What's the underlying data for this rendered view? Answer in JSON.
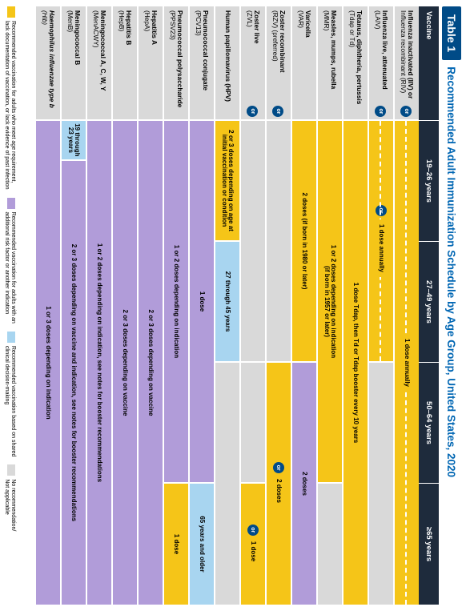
{
  "meta": {
    "table_label": "Table 1",
    "title": "Recommended Adult Immunization Schedule by Age Group, United States, 2020"
  },
  "palette": {
    "yellow": "#f5c518",
    "purple": "#b19cd9",
    "blue": "#a8d5f0",
    "gray": "#d9d9d9",
    "header": "#1e2b3c",
    "brand": "#004b87"
  },
  "columns": [
    {
      "key": "vaccine",
      "label": "Vaccine"
    },
    {
      "key": "c1",
      "label": "19–26 years"
    },
    {
      "key": "c2",
      "label": "27–49 years"
    },
    {
      "key": "c3",
      "label": "50–64 years"
    },
    {
      "key": "c4",
      "label": "≥65 years"
    }
  ],
  "rows": [
    {
      "name": "Influenza inactivated (IIV) or\nInfluenza recombinant (RIV)",
      "hasOr": true,
      "segs": [
        {
          "span": 4,
          "color": "yellow",
          "text": "1 dose annually",
          "dashed": true
        }
      ]
    },
    {
      "name": "Influenza live, attenuated\n(LAIV)",
      "hasOr": true,
      "segs": [
        {
          "span": 2,
          "color": "yellow",
          "text": "1 dose annually",
          "dashed": true,
          "orAfter": true
        },
        {
          "span": 2,
          "color": "gray",
          "text": ""
        }
      ]
    },
    {
      "name": "Tetanus, diphtheria, pertussis\n(Tdap or Td)",
      "segs": [
        {
          "span": 4,
          "color": "yellow",
          "text": "1 dose Tdap, then Td or Tdap booster every 10 years"
        }
      ]
    },
    {
      "name": "Measles, mumps, rubella\n(MMR)",
      "segs": [
        {
          "span": 3,
          "color": "yellow",
          "text": "1 or 2 doses depending on indication\n(if born in 1957 or later)"
        },
        {
          "span": 1,
          "color": "gray",
          "text": ""
        }
      ]
    },
    {
      "name": "Varicella\n(VAR)",
      "segs": [
        {
          "span": 2,
          "color": "yellow",
          "text": "2 doses (if born in 1980 or later)"
        },
        {
          "span": 2,
          "color": "purple",
          "text": "2 doses"
        }
      ]
    },
    {
      "name": "Zoster recombinant\n(RZV) (preferred)",
      "hasOr": true,
      "segs": [
        {
          "span": 2,
          "color": "gray",
          "text": ""
        },
        {
          "span": 2,
          "color": "yellow",
          "text": "2 doses",
          "orAfter": true
        }
      ]
    },
    {
      "name": "Zoster live\n(ZVL)",
      "hasOr": true,
      "segs": [
        {
          "span": 2,
          "color": "gray",
          "text": ""
        },
        {
          "span": 1,
          "color": "gray",
          "text": ""
        },
        {
          "span": 1,
          "color": "yellow",
          "text": "1 dose",
          "orAfter": true
        }
      ]
    },
    {
      "name": "Human papillomavirus (HPV)",
      "segs": [
        {
          "span": 1,
          "color": "yellow",
          "text": "2 or 3 doses depending on age at initial vaccination or condition"
        },
        {
          "span": 1,
          "color": "blue",
          "text": "27 through 45 years"
        },
        {
          "span": 2,
          "color": "gray",
          "text": ""
        }
      ]
    },
    {
      "name": "Pneumococcal conjugate\n(PCV13)",
      "segs": [
        {
          "span": 3,
          "color": "purple",
          "text": "1 dose"
        },
        {
          "span": 1,
          "color": "blue",
          "text": "65 years and older"
        }
      ]
    },
    {
      "name": "Pneumococcal polysaccharide\n(PPSV23)",
      "segs": [
        {
          "span": 3,
          "color": "purple",
          "text": "1 or 2 doses depending on indication"
        },
        {
          "span": 1,
          "color": "yellow",
          "text": "1 dose"
        }
      ]
    },
    {
      "name": "Hepatitis A\n(HepA)",
      "segs": [
        {
          "span": 4,
          "color": "purple",
          "text": "2 or 3 doses depending on vaccine"
        }
      ]
    },
    {
      "name": "Hepatitis B\n(HepB)",
      "segs": [
        {
          "span": 4,
          "color": "purple",
          "text": "2 or 3 doses depending on vaccine"
        }
      ]
    },
    {
      "name": "Meningococcal A, C, W, Y\n(MenACWY)",
      "segs": [
        {
          "span": 4,
          "color": "purple",
          "text": "1 or 2 doses depending on indication, see notes for booster recommendations"
        }
      ]
    },
    {
      "name": "Meningococcal B\n(MenB)",
      "segs": [
        {
          "span": 0.33,
          "color": "blue",
          "text": "19 through 23 years"
        },
        {
          "span": 3.67,
          "color": "purple",
          "text": "2 or 3 doses depending on vaccine and indication, see notes for booster recommendations"
        }
      ]
    },
    {
      "name": "Haemophilus influenzae type b\n(Hib)",
      "italic": true,
      "segs": [
        {
          "span": 4,
          "color": "purple",
          "text": "1 or 3 doses depending on indication"
        }
      ]
    }
  ],
  "legend": [
    {
      "color": "yellow",
      "text": "Recommended vaccination for adults who meet age requirement,\nlack documentation of vaccination, or lack evidence of past infection"
    },
    {
      "color": "purple",
      "text": "Recommended vaccination for adults with an\nadditional risk factor or another indication"
    },
    {
      "color": "blue",
      "text": "Recommended vaccination based on shared\nclinical decision-making"
    },
    {
      "color": "gray",
      "text": "No recommendation/\nNot applicable"
    }
  ]
}
